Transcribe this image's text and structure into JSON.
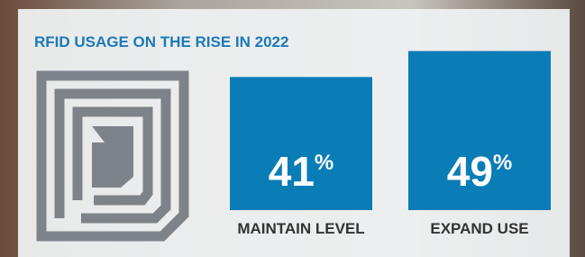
{
  "chart_data": {
    "type": "bar",
    "title": "RFID USAGE ON THE RISE IN 2022",
    "categories": [
      "MAINTAIN LEVEL",
      "EXPAND USE"
    ],
    "values": [
      41,
      49
    ],
    "value_labels": [
      "41%",
      "49%"
    ],
    "color": "#0a7cb6"
  }
}
